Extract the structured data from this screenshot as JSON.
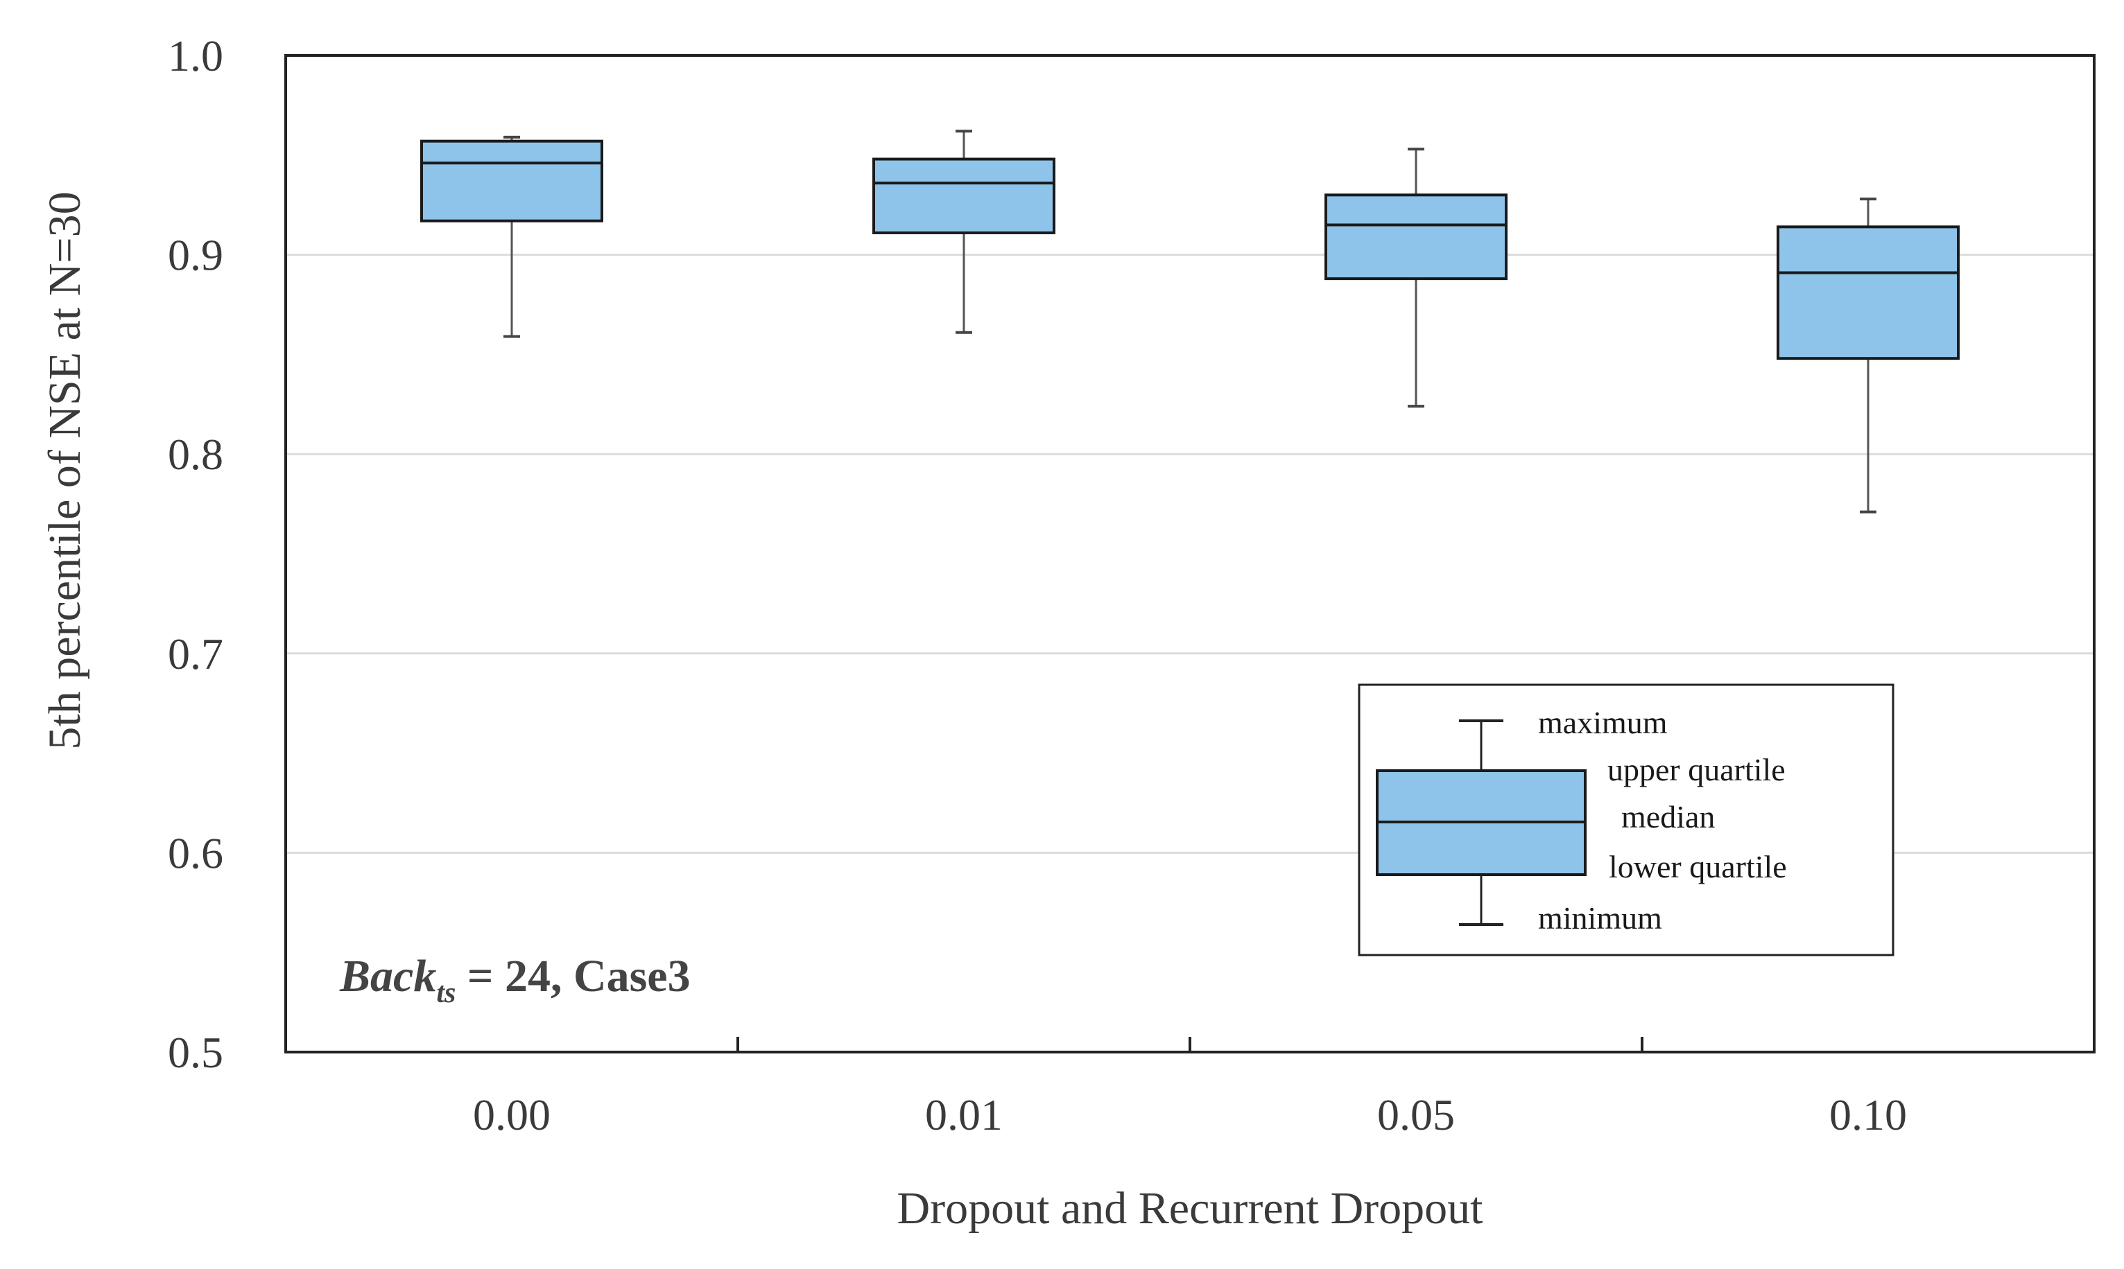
{
  "chart_data": {
    "type": "box",
    "title": "",
    "xlabel": "Dropout and Recurrent Dropout",
    "ylabel": "5th percentile of NSE at N=30",
    "ylim": [
      0.5,
      1.0
    ],
    "yticks": [
      "0.5",
      "0.6",
      "0.7",
      "0.8",
      "0.9",
      "1.0"
    ],
    "ytick_values": [
      0.5,
      0.6,
      0.7,
      0.8,
      0.9,
      1.0
    ],
    "grid": "horizontal",
    "categories": [
      "0.00",
      "0.01",
      "0.05",
      "0.10"
    ],
    "boxes": [
      {
        "category": "0.00",
        "min": 0.859,
        "q1": 0.917,
        "median": 0.946,
        "q3": 0.957,
        "max": 0.959
      },
      {
        "category": "0.01",
        "min": 0.861,
        "q1": 0.911,
        "median": 0.936,
        "q3": 0.948,
        "max": 0.962
      },
      {
        "category": "0.05",
        "min": 0.824,
        "q1": 0.888,
        "median": 0.915,
        "q3": 0.93,
        "max": 0.953
      },
      {
        "category": "0.10",
        "min": 0.771,
        "q1": 0.848,
        "median": 0.891,
        "q3": 0.914,
        "max": 0.928
      }
    ],
    "box_color": "#8EC4EA",
    "annotation": {
      "prefix": "Back",
      "subscript": "ts",
      "suffix": " = 24, Case3"
    },
    "legend": {
      "placement": "lower-right",
      "labels": {
        "maximum": "maximum",
        "upper_quartile": "upper quartile",
        "median": "median",
        "lower_quartile": "lower quartile",
        "minimum": "minimum"
      }
    }
  }
}
